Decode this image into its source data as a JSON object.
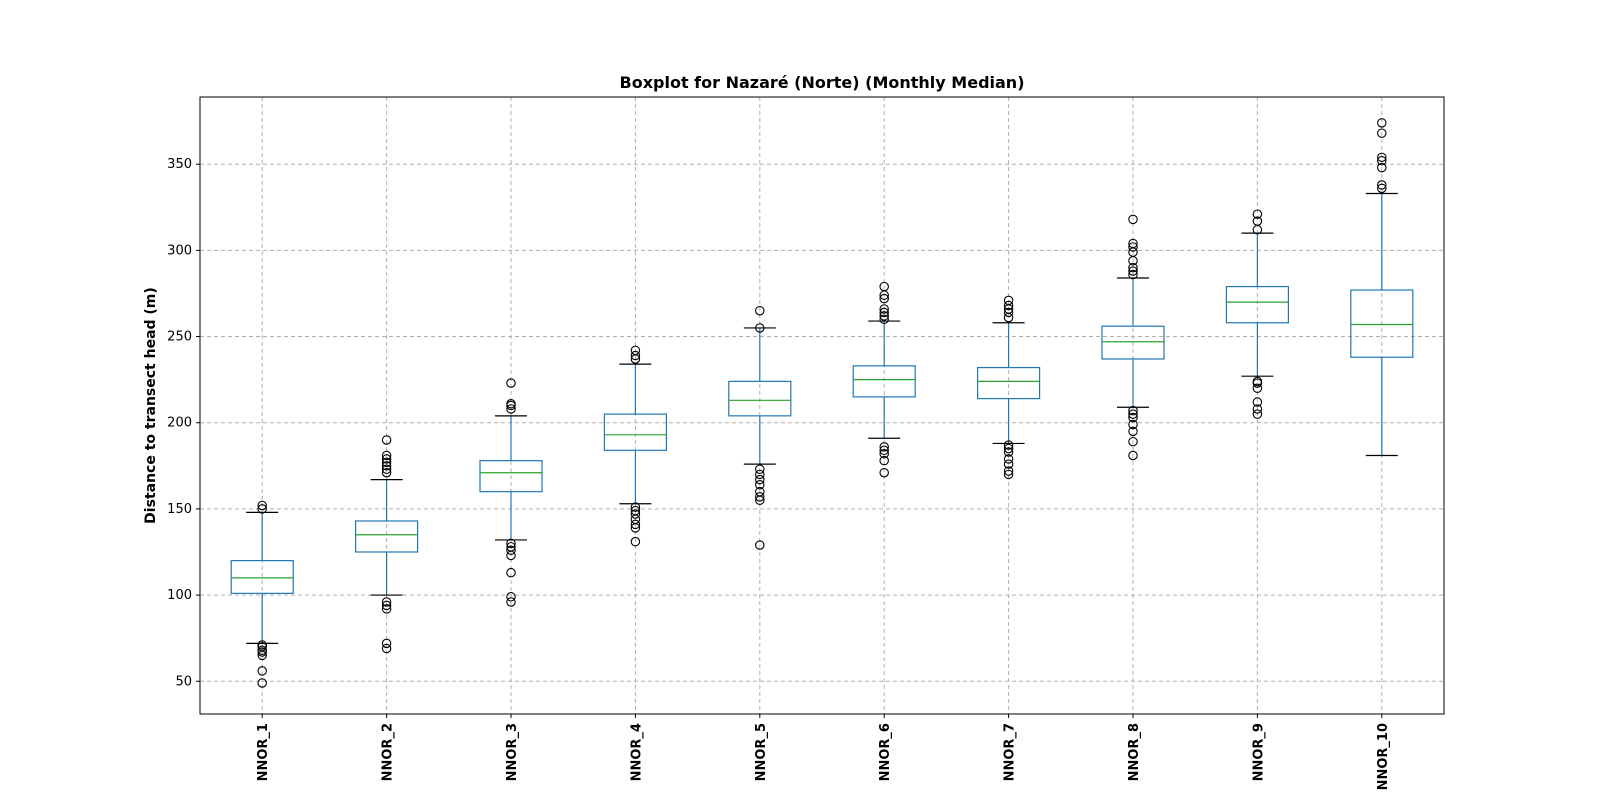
{
  "chart_data": {
    "type": "boxplot",
    "title": "Boxplot for Nazaré (Norte) (Monthly Median)",
    "xlabel": "",
    "ylabel": "Distance to transect head (m)",
    "ylim": [
      31,
      389
    ],
    "yticks": [
      50,
      100,
      150,
      200,
      250,
      300,
      350
    ],
    "grid": true,
    "colors": {
      "box": "#1f77b4",
      "median": "#2ca02c",
      "whisker": "#1f77b4",
      "cap": "#000000",
      "flier": "#000000",
      "grid": "#b0b0b0"
    },
    "categories": [
      "NNOR_1",
      "NNOR_2",
      "NNOR_3",
      "NNOR_4",
      "NNOR_5",
      "NNOR_6",
      "NNOR_7",
      "NNOR_8",
      "NNOR_9",
      "NNOR_10"
    ],
    "boxes": [
      {
        "label": "NNOR_1",
        "whislo": 72,
        "q1": 101,
        "med": 110,
        "q3": 120,
        "whishi": 148,
        "fliers": [
          49,
          56,
          65,
          67,
          68,
          70,
          71,
          150,
          152
        ]
      },
      {
        "label": "NNOR_2",
        "whislo": 100,
        "q1": 125,
        "med": 135,
        "q3": 143,
        "whishi": 167,
        "fliers": [
          69,
          72,
          92,
          94,
          96,
          171,
          173,
          175,
          177,
          179,
          181,
          190
        ]
      },
      {
        "label": "NNOR_3",
        "whislo": 132,
        "q1": 160,
        "med": 171,
        "q3": 178,
        "whishi": 204,
        "fliers": [
          96,
          99,
          113,
          123,
          126,
          128,
          130,
          208,
          210,
          211,
          223
        ]
      },
      {
        "label": "NNOR_4",
        "whislo": 153,
        "q1": 184,
        "med": 193,
        "q3": 205,
        "whishi": 234,
        "fliers": [
          131,
          139,
          141,
          144,
          147,
          149,
          151,
          237,
          239,
          242
        ]
      },
      {
        "label": "NNOR_5",
        "whislo": 176,
        "q1": 204,
        "med": 213,
        "q3": 224,
        "whishi": 255,
        "fliers": [
          129,
          155,
          157,
          160,
          164,
          167,
          170,
          173,
          255,
          265
        ]
      },
      {
        "label": "NNOR_6",
        "whislo": 191,
        "q1": 215,
        "med": 225,
        "q3": 233,
        "whishi": 259,
        "fliers": [
          171,
          178,
          182,
          184,
          186,
          260,
          262,
          264,
          266,
          272,
          274,
          279
        ]
      },
      {
        "label": "NNOR_7",
        "whislo": 188,
        "q1": 214,
        "med": 224,
        "q3": 232,
        "whishi": 258,
        "fliers": [
          170,
          172,
          176,
          179,
          183,
          185,
          187,
          261,
          264,
          266,
          268,
          271
        ]
      },
      {
        "label": "NNOR_8",
        "whislo": 209,
        "q1": 237,
        "med": 247,
        "q3": 256,
        "whishi": 284,
        "fliers": [
          181,
          189,
          195,
          199,
          203,
          205,
          207,
          286,
          288,
          290,
          294,
          299,
          302,
          304,
          318
        ]
      },
      {
        "label": "NNOR_9",
        "whislo": 227,
        "q1": 258,
        "med": 270,
        "q3": 279,
        "whishi": 310,
        "fliers": [
          205,
          208,
          212,
          220,
          223,
          224,
          312,
          317,
          321
        ]
      },
      {
        "label": "NNOR_10",
        "whislo": 181,
        "q1": 238,
        "med": 257,
        "q3": 277,
        "whishi": 333,
        "fliers": [
          336,
          338,
          348,
          352,
          354,
          368,
          374
        ]
      }
    ]
  }
}
